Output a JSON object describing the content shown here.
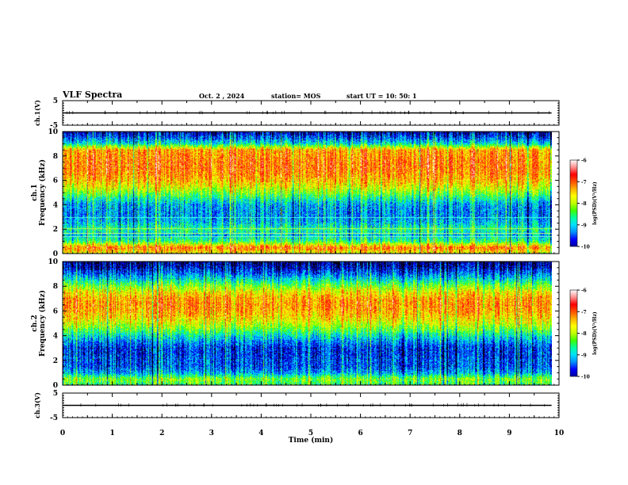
{
  "header": {
    "title": "VLF Spectra",
    "date": "Oct. 2 , 2024",
    "station": "station= MOS",
    "start_ut": "start UT =  10: 50: 1"
  },
  "chart_data": [
    {
      "type": "line",
      "panel": "ch1-waveform",
      "ylabel": "ch.1(V)",
      "ylim": [
        -5,
        5
      ],
      "yticks": [
        "5",
        "-5"
      ],
      "x": [
        0,
        9.85
      ],
      "y": [
        0,
        0
      ],
      "note_color": "#000000"
    },
    {
      "type": "heatmap",
      "panel": "ch1-spectrogram",
      "ylabel_channel": "ch.1",
      "ylabel": "Frequency (kHz)",
      "ylim": [
        0,
        10
      ],
      "yticks": [
        "0",
        "2",
        "4",
        "6",
        "8",
        "10"
      ],
      "xlim": [
        0,
        10
      ],
      "data_xmax": 9.85,
      "intensity_profile": {
        "freq_khz": [
          0.0,
          0.5,
          1.0,
          1.5,
          2.0,
          2.5,
          3.0,
          3.5,
          4.0,
          4.5,
          5.0,
          5.5,
          6.0,
          6.5,
          7.0,
          7.5,
          8.0,
          8.5,
          9.0,
          9.5,
          10.0
        ],
        "log_psd_mean": [
          -7.6,
          -7.0,
          -8.3,
          -8.8,
          -8.4,
          -8.8,
          -9.0,
          -9.0,
          -8.9,
          -8.5,
          -8.0,
          -7.6,
          -7.3,
          -7.1,
          -7.0,
          -7.0,
          -7.1,
          -7.2,
          -8.6,
          -9.2,
          -9.6
        ]
      },
      "colorbar": {
        "label": "log(PSD)(V²/Hz)",
        "range": [
          -10,
          -6
        ],
        "ticks": [
          "-6",
          "-7",
          "-8",
          "-9",
          "-10"
        ]
      }
    },
    {
      "type": "heatmap",
      "panel": "ch2-spectrogram",
      "ylabel_channel": "ch.2",
      "ylabel": "Frequency (kHz)",
      "ylim": [
        0,
        10
      ],
      "yticks": [
        "0",
        "2",
        "4",
        "6",
        "8",
        "10"
      ],
      "xlim": [
        0,
        10
      ],
      "data_xmax": 9.85,
      "intensity_profile": {
        "freq_khz": [
          0.0,
          0.5,
          1.0,
          1.5,
          2.0,
          2.5,
          3.0,
          3.5,
          4.0,
          4.5,
          5.0,
          5.5,
          6.0,
          6.5,
          7.0,
          7.5,
          8.0,
          8.5,
          9.0,
          9.5,
          10.0
        ],
        "log_psd_mean": [
          -8.3,
          -8.0,
          -8.9,
          -9.2,
          -9.2,
          -9.3,
          -9.3,
          -9.0,
          -8.6,
          -8.1,
          -7.7,
          -7.4,
          -7.2,
          -7.1,
          -7.2,
          -7.5,
          -8.0,
          -8.6,
          -9.1,
          -9.5,
          -9.7
        ]
      },
      "colorbar": {
        "label": "log(PSD)(V²/Hz)",
        "range": [
          -10,
          -6
        ],
        "ticks": [
          "-6",
          "-7",
          "-8",
          "-9",
          "-10"
        ]
      }
    },
    {
      "type": "line",
      "panel": "ch3-waveform",
      "ylabel": "ch.3(V)",
      "ylim": [
        -5,
        5
      ],
      "yticks": [
        "5",
        "-5"
      ],
      "x": [
        0,
        9.85
      ],
      "y": [
        0,
        0
      ]
    }
  ],
  "xaxis": {
    "label": "Time (min)",
    "ticks": [
      "0",
      "1",
      "2",
      "3",
      "4",
      "5",
      "6",
      "7",
      "8",
      "9",
      "10"
    ]
  },
  "colormap": [
    "#000000",
    "#0000a0",
    "#0000ff",
    "#0090ff",
    "#00e0ff",
    "#00ffa0",
    "#40ff00",
    "#c0ff00",
    "#ffff00",
    "#ffb000",
    "#ff5000",
    "#ff0000",
    "#ff9090",
    "#ffffff"
  ]
}
